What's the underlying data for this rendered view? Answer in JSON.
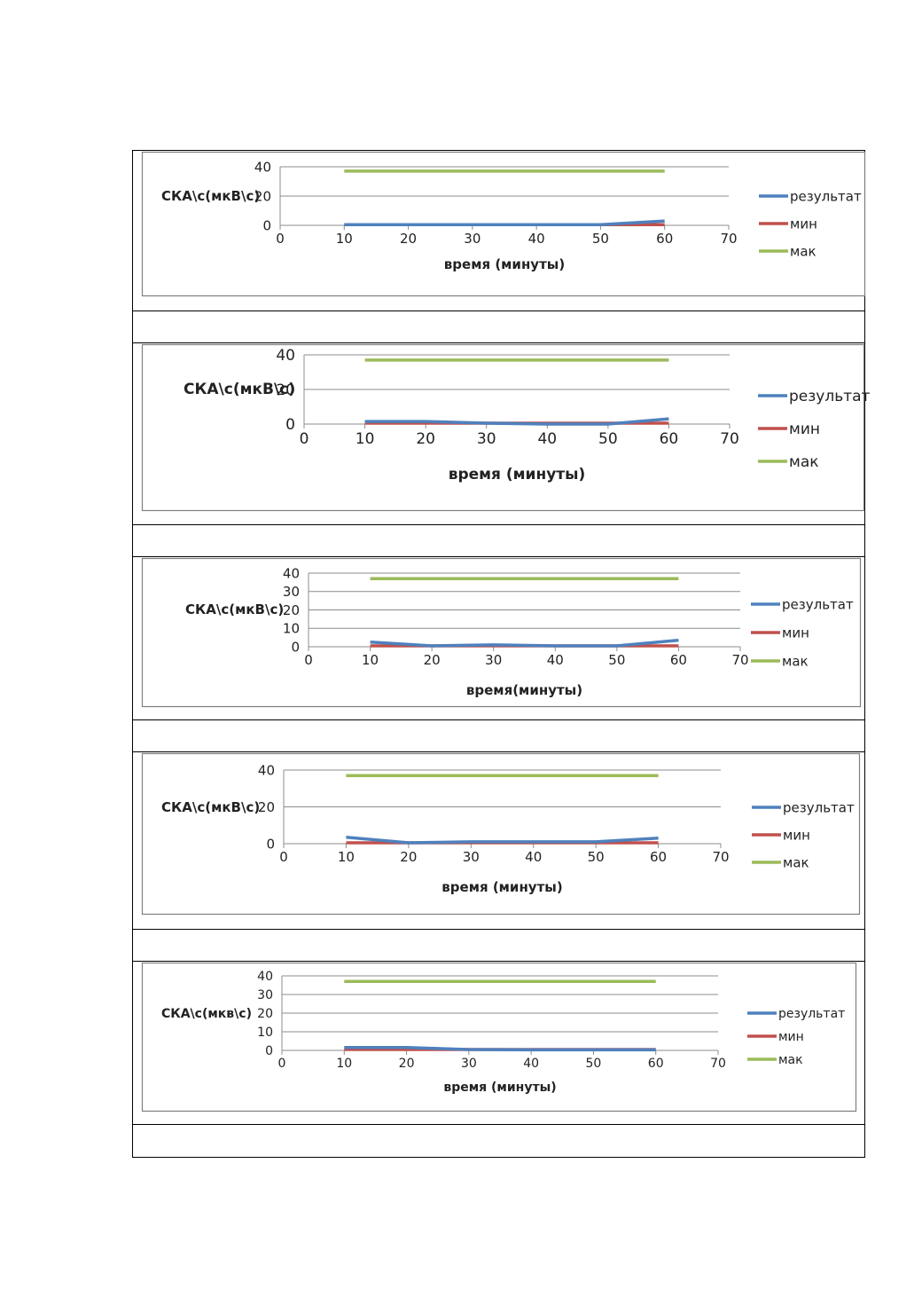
{
  "series_colors": {
    "результат": "#4f81bd",
    "мин": "#c0504d",
    "мак": "#9bbb59"
  },
  "legend_labels": [
    "результат",
    "мин",
    "мак"
  ],
  "chart_data": [
    {
      "type": "line",
      "xlabel": "время (минуты)",
      "ylabel": "СКА\\с(мкВ\\с)",
      "xlim": [
        0,
        70
      ],
      "ylim": [
        0,
        40
      ],
      "xticks": [
        0,
        10,
        20,
        30,
        40,
        50,
        60,
        70
      ],
      "yticks": [
        0,
        20,
        40
      ],
      "x": [
        10,
        20,
        30,
        40,
        50,
        60
      ],
      "series": [
        {
          "name": "результат",
          "values": [
            0.5,
            0.5,
            0.5,
            0.5,
            0.5,
            3
          ]
        },
        {
          "name": "мин",
          "values": [
            0.5,
            0.5,
            0.5,
            0.5,
            0.5,
            0.5
          ]
        },
        {
          "name": "мак",
          "values": [
            37,
            37,
            37,
            37,
            37,
            37
          ]
        }
      ]
    },
    {
      "type": "line",
      "xlabel": "время (минуты)",
      "ylabel": "СКА\\с(мкВ\\с)",
      "xlim": [
        0,
        70
      ],
      "ylim": [
        0,
        40
      ],
      "xticks": [
        0,
        10,
        20,
        30,
        40,
        50,
        60,
        70
      ],
      "yticks": [
        0,
        20,
        40
      ],
      "x": [
        10,
        20,
        30,
        40,
        50,
        60
      ],
      "series": [
        {
          "name": "результат",
          "values": [
            1.5,
            1.5,
            0.5,
            0,
            0,
            3
          ]
        },
        {
          "name": "мин",
          "values": [
            0.5,
            0.5,
            0.5,
            0.5,
            0.5,
            0.5
          ]
        },
        {
          "name": "мак",
          "values": [
            37,
            37,
            37,
            37,
            37,
            37
          ]
        }
      ]
    },
    {
      "type": "line",
      "xlabel": "время(минуты)",
      "ylabel": "СКА\\с(мкВ\\с)",
      "xlim": [
        0,
        70
      ],
      "ylim": [
        0,
        40
      ],
      "xticks": [
        0,
        10,
        20,
        30,
        40,
        50,
        60,
        70
      ],
      "yticks": [
        0,
        10,
        20,
        30,
        40
      ],
      "x": [
        10,
        20,
        30,
        40,
        50,
        60
      ],
      "series": [
        {
          "name": "результат",
          "values": [
            2.5,
            0.5,
            1,
            0.5,
            0.5,
            3.5
          ]
        },
        {
          "name": "мин",
          "values": [
            0.5,
            0.5,
            0.5,
            0.5,
            0.5,
            0.5
          ]
        },
        {
          "name": "мак",
          "values": [
            37,
            37,
            37,
            37,
            37,
            37
          ]
        }
      ]
    },
    {
      "type": "line",
      "xlabel": "время (минуты)",
      "ylabel": "СКА\\с(мкВ\\с)",
      "xlim": [
        0,
        70
      ],
      "ylim": [
        0,
        40
      ],
      "xticks": [
        0,
        10,
        20,
        30,
        40,
        50,
        60,
        70
      ],
      "yticks": [
        0,
        20,
        40
      ],
      "x": [
        10,
        20,
        30,
        40,
        50,
        60
      ],
      "series": [
        {
          "name": "результат",
          "values": [
            3.5,
            0.5,
            1,
            1,
            1,
            3
          ]
        },
        {
          "name": "мин",
          "values": [
            0.5,
            0.5,
            0.5,
            0.5,
            0.5,
            0.5
          ]
        },
        {
          "name": "мак",
          "values": [
            37,
            37,
            37,
            37,
            37,
            37
          ]
        }
      ]
    },
    {
      "type": "line",
      "xlabel": "время (минуты)",
      "ylabel": "СКА\\с(мкв\\с)",
      "xlim": [
        0,
        70
      ],
      "ylim": [
        0,
        40
      ],
      "xticks": [
        0,
        10,
        20,
        30,
        40,
        50,
        60,
        70
      ],
      "yticks": [
        0,
        10,
        20,
        30,
        40
      ],
      "x": [
        10,
        20,
        30,
        40,
        50,
        60
      ],
      "series": [
        {
          "name": "результат",
          "values": [
            1.5,
            1.5,
            0.5,
            0.3,
            0.3,
            0.3
          ]
        },
        {
          "name": "мин",
          "values": [
            0.5,
            0.5,
            0.5,
            0.5,
            0.5,
            0.5
          ]
        },
        {
          "name": "мак",
          "values": [
            37,
            37,
            37,
            37,
            37,
            37
          ]
        }
      ]
    }
  ]
}
